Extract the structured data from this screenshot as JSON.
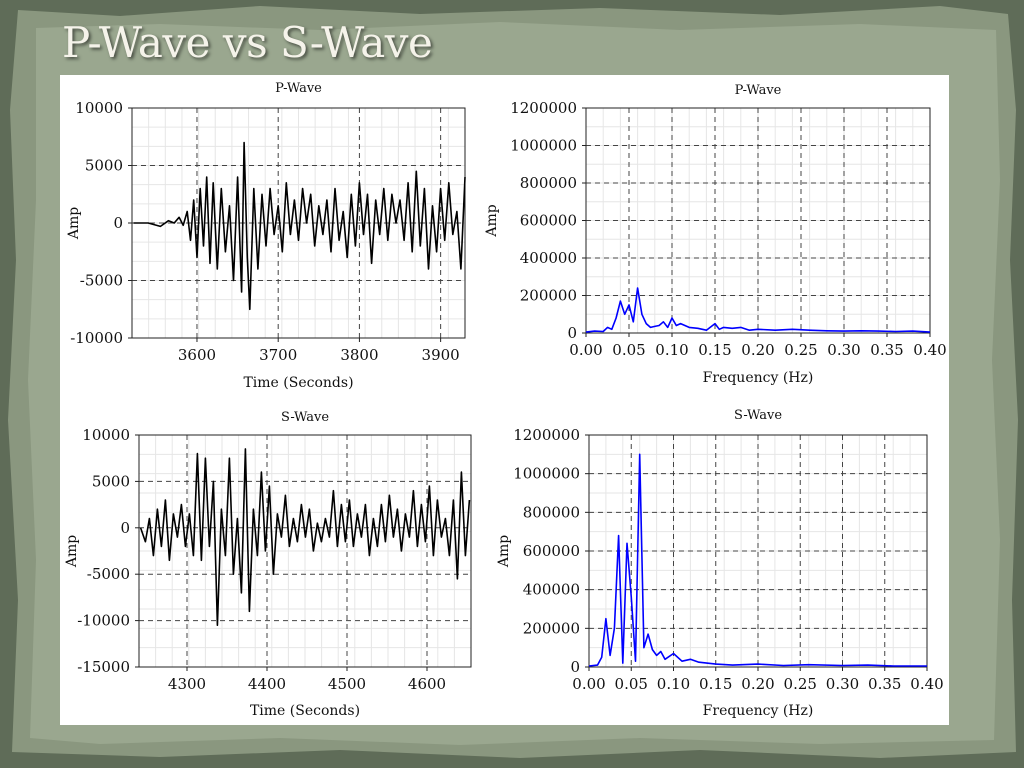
{
  "slide": {
    "title": "P-Wave vs S-Wave"
  },
  "colors": {
    "time_series": "#000000",
    "spectrum": "#0000ff",
    "frame": "#5c6b55"
  },
  "chart_data": [
    {
      "id": "p-time",
      "type": "line",
      "title": "P-Wave",
      "xlabel": "Time (Seconds)",
      "ylabel": "Amp",
      "xlim": [
        3520,
        3930
      ],
      "ylim": [
        -10000,
        10000
      ],
      "xticks": [
        3600,
        3700,
        3800,
        3900
      ],
      "xtick_labels": [
        "3600",
        "3700",
        "3800",
        "3900"
      ],
      "yticks": [
        10000,
        5000,
        0,
        -5000,
        -10000
      ],
      "ytick_labels": [
        "10000",
        "5000",
        "0",
        "-5000",
        "-10000"
      ],
      "grid": true,
      "series": [
        {
          "color": "#000000",
          "x": [
            3522,
            3540,
            3555,
            3565,
            3572,
            3578,
            3583,
            3588,
            3592,
            3596,
            3600,
            3604,
            3608,
            3612,
            3616,
            3620,
            3625,
            3630,
            3635,
            3640,
            3645,
            3650,
            3655,
            3658,
            3662,
            3665,
            3670,
            3675,
            3680,
            3685,
            3690,
            3695,
            3700,
            3705,
            3710,
            3715,
            3720,
            3725,
            3730,
            3735,
            3740,
            3745,
            3750,
            3755,
            3760,
            3765,
            3770,
            3775,
            3780,
            3785,
            3790,
            3795,
            3800,
            3805,
            3810,
            3815,
            3820,
            3825,
            3830,
            3835,
            3840,
            3845,
            3850,
            3855,
            3860,
            3865,
            3870,
            3875,
            3880,
            3885,
            3890,
            3895,
            3900,
            3905,
            3910,
            3915,
            3920,
            3925,
            3930
          ],
          "y": [
            0,
            0,
            -300,
            200,
            0,
            500,
            -200,
            1000,
            -1500,
            2000,
            -3000,
            3000,
            -2000,
            4000,
            -3500,
            3500,
            -4000,
            3000,
            -2500,
            1500,
            -5000,
            4000,
            -6000,
            7000,
            -3000,
            -7500,
            3000,
            -4000,
            2500,
            -2000,
            3000,
            -1000,
            1500,
            -2500,
            3500,
            -1000,
            2000,
            -1500,
            3000,
            0,
            2500,
            -2000,
            1500,
            -1000,
            2000,
            -2500,
            3000,
            -1500,
            1000,
            -3000,
            2500,
            -2000,
            3500,
            -1000,
            2500,
            -3500,
            2000,
            -1000,
            3000,
            -1500,
            2500,
            0,
            2000,
            -1500,
            3500,
            -2500,
            4500,
            -2000,
            3000,
            -4000,
            1500,
            -2500,
            3000,
            -1500,
            3500,
            -1000,
            1000,
            -4000,
            4000
          ]
        }
      ]
    },
    {
      "id": "p-spectrum",
      "type": "line",
      "title": "P-Wave",
      "xlabel": "Frequency (Hz)",
      "ylabel": "Amp",
      "xlim": [
        0,
        0.4
      ],
      "ylim": [
        0,
        1200000
      ],
      "xticks": [
        0,
        0.05,
        0.1,
        0.15,
        0.2,
        0.25,
        0.3,
        0.35,
        0.4
      ],
      "xtick_labels": [
        "0.00",
        "0.05",
        "0.10",
        "0.15",
        "0.20",
        "0.25",
        "0.30",
        "0.35",
        "0.40"
      ],
      "yticks": [
        0,
        200000,
        400000,
        600000,
        800000,
        1000000,
        1200000
      ],
      "ytick_labels": [
        "0",
        "200000",
        "400000",
        "600000",
        "800000",
        "1000000",
        "1200000"
      ],
      "grid": true,
      "series": [
        {
          "color": "#0000ff",
          "x": [
            0,
            0.01,
            0.02,
            0.025,
            0.03,
            0.035,
            0.04,
            0.045,
            0.05,
            0.055,
            0.06,
            0.065,
            0.07,
            0.075,
            0.08,
            0.085,
            0.09,
            0.095,
            0.1,
            0.105,
            0.11,
            0.12,
            0.13,
            0.14,
            0.15,
            0.155,
            0.16,
            0.17,
            0.18,
            0.19,
            0.2,
            0.22,
            0.24,
            0.26,
            0.28,
            0.3,
            0.32,
            0.34,
            0.36,
            0.38,
            0.4
          ],
          "y": [
            5000,
            10000,
            8000,
            30000,
            20000,
            80000,
            170000,
            100000,
            150000,
            60000,
            240000,
            100000,
            50000,
            30000,
            35000,
            40000,
            60000,
            30000,
            80000,
            40000,
            50000,
            30000,
            25000,
            15000,
            50000,
            20000,
            30000,
            25000,
            30000,
            15000,
            20000,
            15000,
            20000,
            15000,
            12000,
            10000,
            12000,
            10000,
            8000,
            10000,
            5000
          ]
        }
      ]
    },
    {
      "id": "s-time",
      "type": "line",
      "title": "S-Wave",
      "xlabel": "Time (Seconds)",
      "ylabel": "Amp",
      "xlim": [
        4240,
        4655
      ],
      "ylim": [
        -15000,
        10000
      ],
      "xticks": [
        4300,
        4400,
        4500,
        4600
      ],
      "xtick_labels": [
        "4300",
        "4400",
        "4500",
        "4600"
      ],
      "yticks": [
        10000,
        5000,
        0,
        -5000,
        -10000,
        -15000
      ],
      "ytick_labels": [
        "10000",
        "5000",
        "0",
        "-5000",
        "-10000",
        "-15000"
      ],
      "grid": true,
      "series": [
        {
          "color": "#000000",
          "x": [
            4242,
            4248,
            4253,
            4258,
            4263,
            4268,
            4273,
            4278,
            4283,
            4288,
            4293,
            4298,
            4303,
            4308,
            4313,
            4318,
            4323,
            4328,
            4333,
            4338,
            4343,
            4348,
            4353,
            4358,
            4363,
            4368,
            4373,
            4378,
            4383,
            4388,
            4393,
            4398,
            4403,
            4408,
            4413,
            4418,
            4423,
            4428,
            4433,
            4438,
            4443,
            4448,
            4453,
            4458,
            4463,
            4468,
            4473,
            4478,
            4483,
            4488,
            4493,
            4498,
            4503,
            4508,
            4513,
            4518,
            4523,
            4528,
            4533,
            4538,
            4543,
            4548,
            4553,
            4558,
            4563,
            4568,
            4573,
            4578,
            4583,
            4588,
            4593,
            4598,
            4603,
            4608,
            4613,
            4618,
            4623,
            4628,
            4633,
            4638,
            4643,
            4648,
            4653
          ],
          "y": [
            0,
            -1500,
            1000,
            -3000,
            2000,
            -2000,
            3000,
            -3500,
            1500,
            -1000,
            2500,
            -2000,
            1500,
            -3000,
            8000,
            -3500,
            7500,
            -2000,
            5000,
            -10500,
            2000,
            -3000,
            7500,
            -5000,
            1000,
            -7000,
            8500,
            -9000,
            2000,
            -3000,
            6000,
            -2500,
            4500,
            -5000,
            1500,
            -1000,
            3500,
            -2000,
            1000,
            -1500,
            2500,
            -1000,
            2000,
            -2500,
            500,
            -1500,
            1000,
            -1000,
            4000,
            -2000,
            2500,
            -1500,
            3000,
            -2000,
            1500,
            -1000,
            2500,
            -3000,
            1000,
            -2000,
            2500,
            -1500,
            3500,
            -1000,
            2000,
            -2500,
            1500,
            -1000,
            4000,
            -2000,
            2500,
            -1500,
            4500,
            -3000,
            3000,
            -1000,
            1000,
            -3000,
            3000,
            -5500,
            6000,
            -3000,
            3000
          ]
        }
      ]
    },
    {
      "id": "s-spectrum",
      "type": "line",
      "title": "S-Wave",
      "xlabel": "Frequency (Hz)",
      "ylabel": "Amp",
      "xlim": [
        0,
        0.4
      ],
      "ylim": [
        0,
        1200000
      ],
      "xticks": [
        0,
        0.05,
        0.1,
        0.15,
        0.2,
        0.25,
        0.3,
        0.35,
        0.4
      ],
      "xtick_labels": [
        "0.00",
        "0.05",
        "0.10",
        "0.15",
        "0.20",
        "0.25",
        "0.30",
        "0.35",
        "0.40"
      ],
      "yticks": [
        0,
        200000,
        400000,
        600000,
        800000,
        1000000,
        1200000
      ],
      "ytick_labels": [
        "0",
        "200000",
        "400000",
        "600000",
        "800000",
        "1000000",
        "1200000"
      ],
      "grid": true,
      "series": [
        {
          "color": "#0000ff",
          "x": [
            0,
            0.01,
            0.015,
            0.02,
            0.025,
            0.03,
            0.035,
            0.04,
            0.045,
            0.05,
            0.055,
            0.06,
            0.065,
            0.07,
            0.075,
            0.08,
            0.085,
            0.09,
            0.1,
            0.11,
            0.12,
            0.13,
            0.15,
            0.17,
            0.2,
            0.23,
            0.26,
            0.3,
            0.33,
            0.36,
            0.4
          ],
          "y": [
            5000,
            10000,
            50000,
            250000,
            60000,
            200000,
            680000,
            20000,
            640000,
            360000,
            30000,
            1100000,
            100000,
            170000,
            90000,
            60000,
            80000,
            40000,
            70000,
            30000,
            40000,
            25000,
            15000,
            10000,
            15000,
            8000,
            12000,
            8000,
            10000,
            5000,
            5000
          ]
        }
      ]
    }
  ]
}
